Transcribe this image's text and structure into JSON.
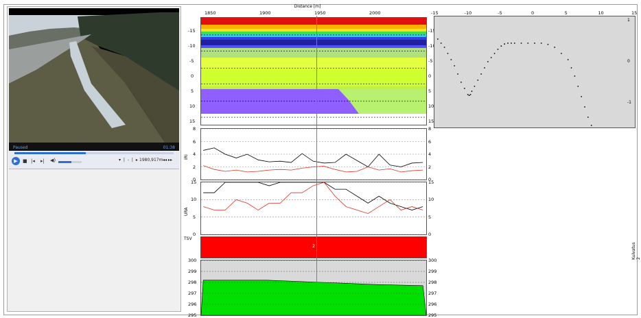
{
  "video": {
    "status": "Paused",
    "time": "01:38",
    "seek_fraction": 0.45,
    "volume_fraction": 0.55,
    "distance_readout": "1980,917m",
    "step_buttons": "▾ | - | ▸",
    "nav_buttons": "◂◂ ▸▸",
    "small_times": {
      "left": "01",
      "right": "▸"
    }
  },
  "distance_axis": {
    "title": "Distance [m]",
    "ticks": [
      "1850",
      "1900",
      "1950",
      "2000"
    ],
    "cursor_distance": 1950
  },
  "rut_map": {
    "y_ticks_left": [
      "-15",
      "-10",
      "-5",
      "0",
      "5",
      "10",
      "15"
    ],
    "y_ticks_right": [
      "-15",
      "-10",
      "-5",
      "0",
      "5",
      "10",
      "15"
    ]
  },
  "iri_chart": {
    "label": "IRI",
    "y_ticks": [
      "8",
      "6",
      "4",
      "2",
      "0"
    ]
  },
  "ura_chart": {
    "label": "URA",
    "y_ticks": [
      "15",
      "10",
      "5",
      "0"
    ]
  },
  "tsv_chart": {
    "label": "TSV",
    "value": "2",
    "color": "#ff0000"
  },
  "height_chart": {
    "y_ticks": [
      "300",
      "299",
      "298",
      "297",
      "296",
      "295"
    ],
    "fill_color": "#00e000"
  },
  "profile_chart": {
    "x_ticks": [
      "-15",
      "-10",
      "-5",
      "0",
      "5",
      "10",
      "15"
    ],
    "y_ticks": [
      "1",
      "0",
      "-1"
    ]
  },
  "side_label": "Kuivatus 2",
  "chart_data": [
    {
      "type": "line",
      "title": "",
      "ylabel": "IRI",
      "ylim": [
        0,
        8
      ],
      "x": [
        1842,
        1852,
        1862,
        1872,
        1882,
        1892,
        1902,
        1912,
        1922,
        1932,
        1942,
        1952,
        1962,
        1972,
        1982,
        1992,
        2002,
        2012,
        2022,
        2032,
        2042
      ],
      "series": [
        {
          "color": "#000000",
          "values": [
            4.6,
            5.0,
            4.0,
            3.4,
            4.0,
            3.1,
            2.8,
            2.9,
            2.7,
            4.1,
            2.9,
            2.6,
            2.7,
            4.0,
            3.0,
            2.0,
            4.0,
            2.3,
            2.0,
            2.6,
            2.7
          ]
        },
        {
          "color": "#e03020",
          "values": [
            2.2,
            1.6,
            1.3,
            1.5,
            1.2,
            1.3,
            1.5,
            1.6,
            1.5,
            1.8,
            2.0,
            2.1,
            1.6,
            1.2,
            1.3,
            2.0,
            1.5,
            1.7,
            1.2,
            1.4,
            1.5
          ]
        }
      ]
    },
    {
      "type": "line",
      "title": "",
      "ylabel": "URA",
      "ylim": [
        0,
        15
      ],
      "x": [
        1842,
        1852,
        1862,
        1872,
        1882,
        1892,
        1902,
        1912,
        1922,
        1932,
        1942,
        1952,
        1962,
        1972,
        1982,
        1992,
        2002,
        2012,
        2022,
        2032,
        2042
      ],
      "series": [
        {
          "color": "#000000",
          "values": [
            12,
            12,
            15,
            15,
            15,
            15,
            14,
            15,
            15,
            15,
            15,
            15,
            13,
            13,
            11,
            9,
            11,
            9,
            8,
            7,
            8
          ]
        },
        {
          "color": "#e03020",
          "values": [
            8,
            7,
            7,
            10,
            9,
            7,
            9,
            9,
            12,
            12,
            14,
            15,
            11,
            8,
            7,
            6,
            8,
            10,
            7,
            8,
            7
          ]
        }
      ]
    },
    {
      "type": "area",
      "title": "",
      "ylabel": "",
      "ylim": [
        295,
        300
      ],
      "x": [
        1842,
        1900,
        1950,
        2000,
        2042
      ],
      "series": [
        {
          "color": "#00e000",
          "values": [
            298.2,
            298.2,
            298.0,
            297.8,
            297.7
          ]
        }
      ]
    },
    {
      "type": "scatter",
      "title": "",
      "xlim": [
        -15,
        15
      ],
      "ylim": [
        -1.6,
        1.1
      ],
      "series": [
        {
          "color": "#000000",
          "x": [
            -14.5,
            -14,
            -13.5,
            -13,
            -12.5,
            -12,
            -11.5,
            -11,
            -10.5,
            -10,
            -9.8,
            -9.6,
            -9.4,
            -9,
            -8.5,
            -8,
            -7.5,
            -7,
            -6.5,
            -6,
            -5.5,
            -5,
            -4.5,
            -4,
            -3.5,
            -3,
            -2,
            -1,
            0,
            1,
            2,
            3,
            4,
            5,
            5.5,
            6,
            6.5,
            7,
            7.5,
            8,
            8.5
          ],
          "y": [
            0.55,
            0.45,
            0.35,
            0.2,
            0.05,
            -0.1,
            -0.3,
            -0.5,
            -0.65,
            -0.8,
            -0.82,
            -0.8,
            -0.72,
            -0.6,
            -0.45,
            -0.3,
            -0.15,
            0,
            0.1,
            0.2,
            0.3,
            0.38,
            0.43,
            0.45,
            0.45,
            0.45,
            0.45,
            0.45,
            0.45,
            0.45,
            0.42,
            0.35,
            0.2,
            0.05,
            -0.15,
            -0.35,
            -0.6,
            -0.85,
            -1.1,
            -1.35,
            -1.55
          ]
        }
      ]
    }
  ]
}
